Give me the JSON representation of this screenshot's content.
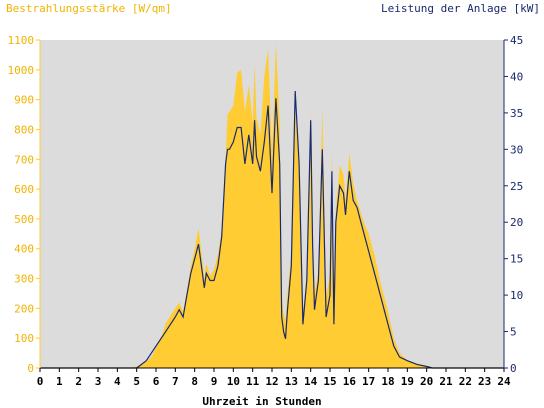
{
  "chart_data": {
    "type": "area",
    "left_axis_title": "Bestrahlungsstärke [W/qm]",
    "right_axis_title": "Leistung der Anlage [kW]",
    "xlabel": "Uhrzeit in Stunden",
    "xlim": [
      0,
      24
    ],
    "x_ticks": [
      "0",
      "1",
      "2",
      "3",
      "4",
      "5",
      "6",
      "7",
      "8",
      "9",
      "10",
      "11",
      "12",
      "13",
      "14",
      "15",
      "16",
      "17",
      "18",
      "19",
      "20",
      "21",
      "22",
      "23",
      "24"
    ],
    "ylim_left": [
      0,
      1100
    ],
    "y_ticks_left": [
      "0",
      "100",
      "200",
      "300",
      "400",
      "500",
      "600",
      "700",
      "800",
      "900",
      "1000",
      "1100"
    ],
    "ylim_right": [
      0,
      45
    ],
    "y_ticks_right": [
      "0",
      "5",
      "10",
      "15",
      "20",
      "25",
      "30",
      "35",
      "40",
      "45"
    ],
    "grid": false,
    "colors": {
      "plot_background": "#dcdcdc",
      "irradiance_fill": "#ffcc33",
      "power_line": "#1a2a6c",
      "left_axis_text": "#f0b400",
      "right_axis_text": "#1a2a6c",
      "x_axis_text": "#000000"
    },
    "series": [
      {
        "axis": "left",
        "style": "filled-area",
        "x": [
          0,
          4.5,
          5.0,
          5.5,
          5.8,
          6.0,
          6.3,
          6.5,
          6.8,
          7.0,
          7.2,
          7.4,
          7.6,
          7.8,
          8.0,
          8.2,
          8.4,
          8.5,
          8.6,
          8.8,
          9.0,
          9.2,
          9.4,
          9.6,
          9.7,
          9.8,
          10.0,
          10.2,
          10.4,
          10.6,
          10.8,
          11.0,
          11.1,
          11.2,
          11.4,
          11.6,
          11.8,
          12.0,
          12.2,
          12.4,
          12.5,
          12.6,
          12.7,
          12.8,
          13.0,
          13.2,
          13.4,
          13.6,
          13.8,
          14.0,
          14.1,
          14.2,
          14.4,
          14.6,
          14.8,
          15.0,
          15.1,
          15.2,
          15.3,
          15.5,
          15.7,
          15.8,
          16.0,
          16.2,
          16.4,
          16.6,
          16.8,
          17.0,
          17.3,
          17.6,
          18.0,
          18.3,
          18.6,
          19.0,
          19.5,
          20.0,
          20.3,
          20.5,
          24
        ],
        "values": [
          0,
          0,
          5,
          20,
          40,
          70,
          110,
          150,
          180,
          200,
          220,
          190,
          260,
          340,
          400,
          470,
          360,
          300,
          350,
          310,
          330,
          380,
          460,
          700,
          850,
          860,
          880,
          990,
          1000,
          860,
          950,
          820,
          1020,
          840,
          780,
          980,
          1070,
          720,
          1090,
          820,
          230,
          180,
          160,
          250,
          380,
          860,
          700,
          180,
          320,
          860,
          450,
          250,
          320,
          870,
          240,
          310,
          730,
          180,
          530,
          680,
          650,
          560,
          720,
          620,
          560,
          520,
          480,
          450,
          380,
          290,
          190,
          100,
          50,
          25,
          15,
          8,
          2,
          0,
          0
        ]
      },
      {
        "axis": "right",
        "style": "line",
        "x": [
          0,
          5.0,
          5.5,
          6.0,
          6.5,
          7.0,
          7.2,
          7.4,
          7.6,
          7.8,
          8.0,
          8.2,
          8.4,
          8.5,
          8.6,
          8.8,
          9.0,
          9.2,
          9.4,
          9.6,
          9.7,
          9.8,
          10.0,
          10.2,
          10.4,
          10.6,
          10.8,
          11.0,
          11.1,
          11.2,
          11.4,
          11.6,
          11.8,
          12.0,
          12.2,
          12.4,
          12.5,
          12.6,
          12.7,
          12.8,
          13.0,
          13.2,
          13.4,
          13.6,
          13.8,
          14.0,
          14.1,
          14.2,
          14.4,
          14.6,
          14.8,
          15.0,
          15.1,
          15.2,
          15.3,
          15.5,
          15.7,
          15.8,
          16.0,
          16.2,
          16.4,
          16.6,
          16.8,
          17.0,
          17.3,
          17.6,
          18.0,
          18.3,
          18.6,
          19.0,
          19.5,
          20.0,
          20.3,
          20.5,
          24
        ],
        "values": [
          0,
          0,
          1,
          3,
          5,
          7,
          8,
          7,
          10,
          13,
          15,
          17,
          13,
          11,
          13,
          12,
          12,
          14,
          18,
          28,
          30,
          30,
          31,
          33,
          33,
          28,
          32,
          28,
          34,
          29,
          27,
          31,
          36,
          24,
          37,
          28,
          7,
          5,
          4,
          8,
          14,
          38,
          28,
          6,
          12,
          34,
          17,
          8,
          12,
          30,
          7,
          10,
          27,
          6,
          20,
          25,
          24,
          21,
          27,
          23,
          22,
          20,
          18,
          16,
          13,
          10,
          6,
          3,
          1.5,
          1,
          0.5,
          0.2,
          0,
          0,
          0
        ]
      }
    ]
  }
}
